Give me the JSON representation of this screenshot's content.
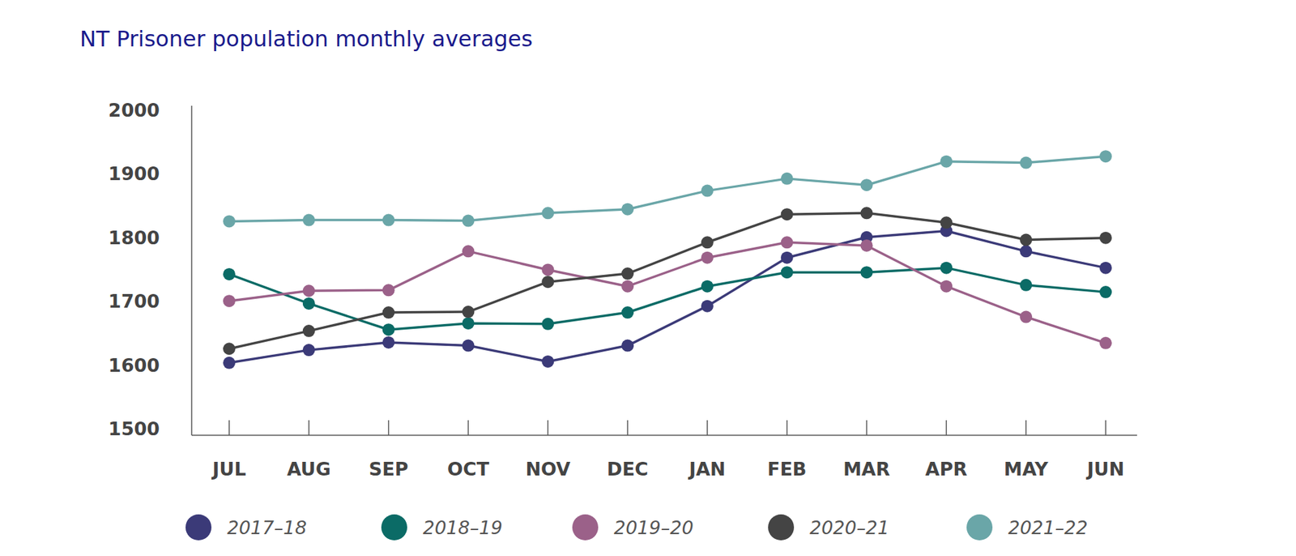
{
  "chart_data": {
    "type": "line",
    "title": "NT Prisoner population monthly averages",
    "categories": [
      "JUL",
      "AUG",
      "SEP",
      "OCT",
      "NOV",
      "DEC",
      "JAN",
      "FEB",
      "MAR",
      "APR",
      "MAY",
      "JUN"
    ],
    "series": [
      {
        "name": "2017–18",
        "color": "#3b3a78",
        "values": [
          1603,
          1623,
          1635,
          1630,
          1605,
          1630,
          1692,
          1768,
          1800,
          1810,
          1778,
          1752
        ]
      },
      {
        "name": "2018–19",
        "color": "#0b6b66",
        "values": [
          1742,
          1696,
          1655,
          1665,
          1664,
          1682,
          1723,
          1745,
          1745,
          1752,
          1725,
          1714
        ]
      },
      {
        "name": "2019–20",
        "color": "#9b6189",
        "values": [
          1700,
          1716,
          1717,
          1778,
          1749,
          1723,
          1768,
          1792,
          1787,
          1723,
          1675,
          1634
        ]
      },
      {
        "name": "2020–21",
        "color": "#444444",
        "values": [
          1625,
          1653,
          1682,
          1683,
          1730,
          1743,
          1792,
          1836,
          1838,
          1823,
          1796,
          1799
        ]
      },
      {
        "name": "2021–22",
        "color": "#6aa6a8",
        "values": [
          1825,
          1827,
          1827,
          1826,
          1838,
          1844,
          1873,
          1892,
          1882,
          1919,
          1917,
          1927
        ]
      }
    ],
    "ylim": [
      1500,
      2000
    ],
    "yticks": [
      1500,
      1600,
      1700,
      1800,
      1900,
      2000
    ],
    "grid": false,
    "legend": "bottom",
    "marker": "circle"
  }
}
